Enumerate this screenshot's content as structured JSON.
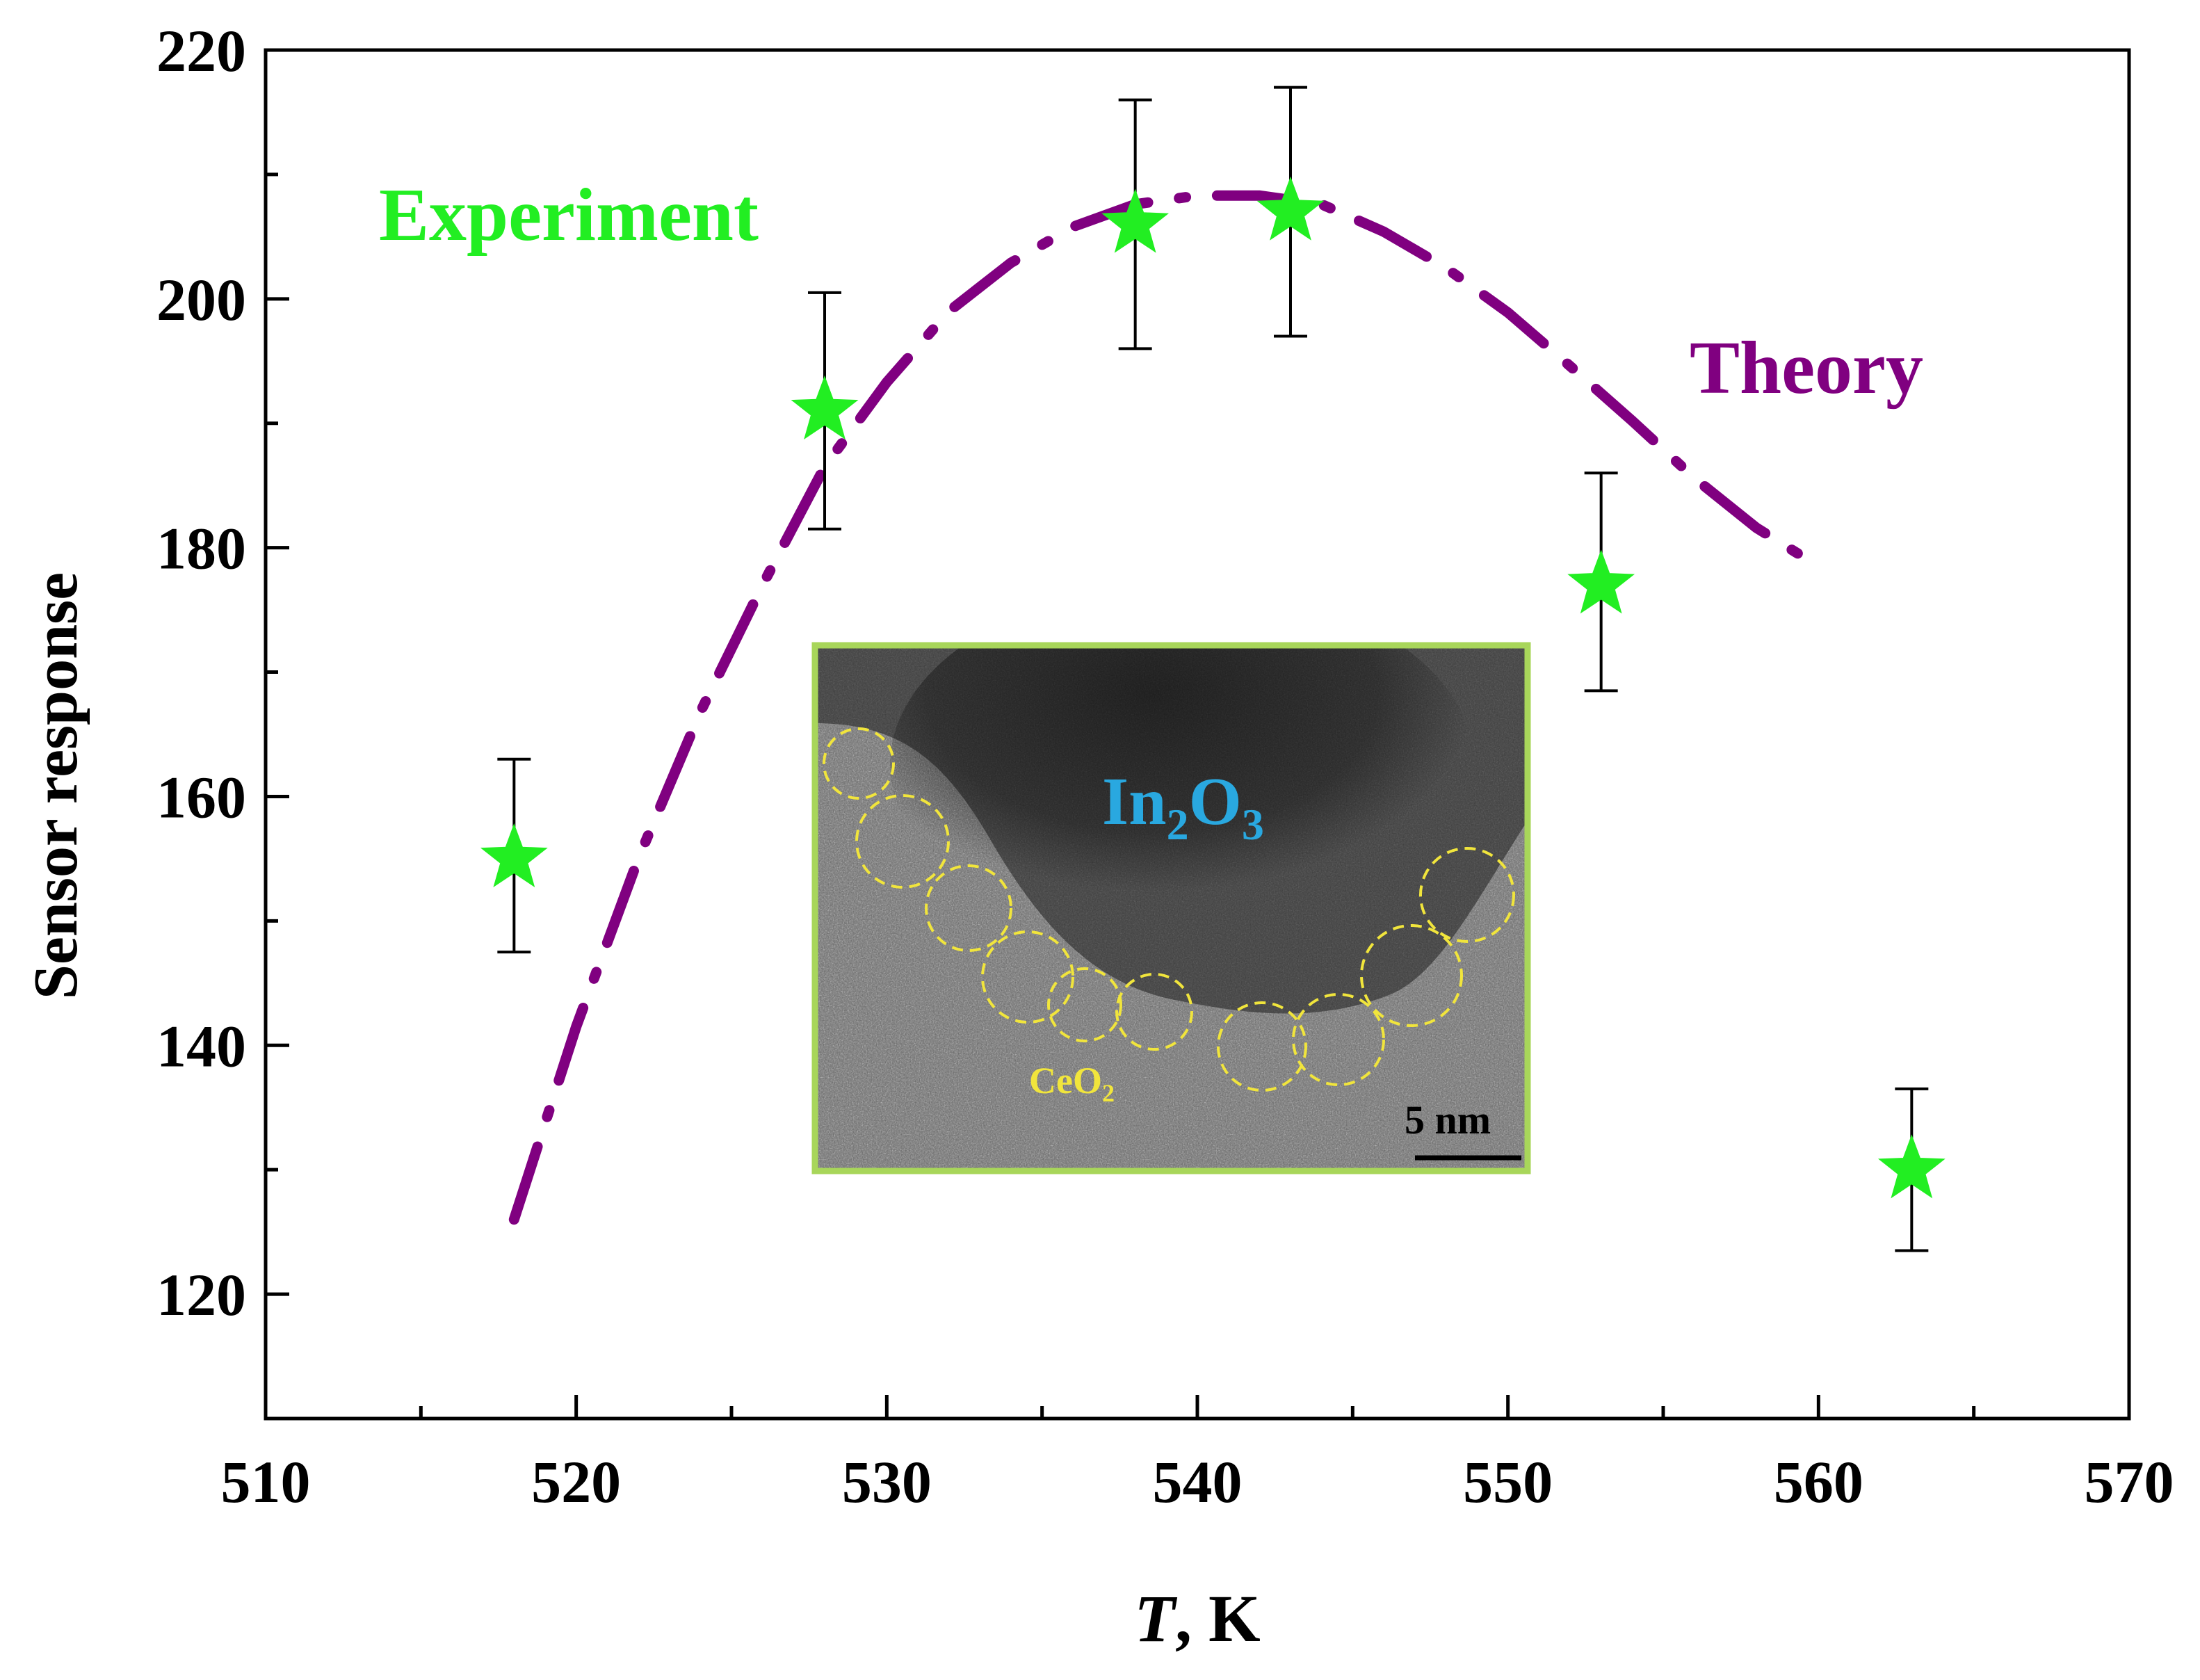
{
  "chart_data": {
    "type": "scatter",
    "title": "",
    "xlabel_italic": "T",
    "xlabel_rest": ", K",
    "ylabel": "Sensor response",
    "xlim": [
      510,
      570
    ],
    "ylim": [
      110,
      220
    ],
    "x_ticks": [
      510,
      520,
      530,
      540,
      550,
      560,
      570
    ],
    "y_ticks": [
      120,
      140,
      160,
      180,
      200,
      220
    ],
    "series": [
      {
        "name": "Experiment",
        "kind": "points-with-errorbars",
        "marker": "star",
        "color": "#22ee22",
        "x": [
          518,
          528,
          538,
          543,
          553,
          563
        ],
        "y": [
          155,
          191,
          206,
          207,
          177,
          130
        ],
        "err_low": [
          147.5,
          181.5,
          196,
          197,
          168.5,
          123.5
        ],
        "err_high": [
          163,
          200.5,
          216,
          217,
          186,
          136.5
        ]
      },
      {
        "name": "Theory",
        "kind": "dash-dot-curve",
        "color": "#800080",
        "x": [
          518,
          520,
          522,
          524,
          526,
          528,
          530,
          532,
          534,
          536,
          538,
          540,
          542,
          544,
          546,
          548,
          550,
          552,
          554,
          556,
          558,
          560
        ],
        "y": [
          126,
          141.5,
          155,
          166.8,
          177,
          186.5,
          193.3,
          199,
          202.9,
          205.8,
          207.6,
          208.3,
          208.3,
          207.6,
          205.4,
          202.5,
          198.9,
          194.6,
          190.2,
          185.6,
          181.6,
          178.5
        ]
      }
    ],
    "annotations": {
      "experiment_label": "Experiment",
      "theory_label": "Theory",
      "inset_in": "In",
      "inset_in_sub1": "2",
      "inset_o": "O",
      "inset_o_sub2": "3",
      "inset_ce": "CeO",
      "inset_ce_sub": "2",
      "scale_bar": "5 nm"
    },
    "colors": {
      "inset_border": "#a8d65a",
      "inset_label": "#29a8e0",
      "ceo2": "#f1e53c"
    }
  }
}
